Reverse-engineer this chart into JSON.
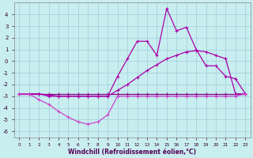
{
  "background_color": "#c8eef0",
  "grid_color": "#a0cdd8",
  "line_color_dark": "#880088",
  "line_color_mid": "#aa00aa",
  "line_color_bright": "#cc44cc",
  "xlabel": "Windchill (Refroidissement éolien,°C)",
  "x_hours": [
    0,
    1,
    2,
    3,
    4,
    5,
    6,
    7,
    8,
    9,
    10,
    11,
    12,
    13,
    14,
    15,
    16,
    17,
    18,
    19,
    20,
    21,
    22,
    23
  ],
  "series_flat": [
    -2.8,
    -2.8,
    -2.8,
    -2.8,
    -2.8,
    -2.8,
    -2.8,
    -2.8,
    -2.8,
    -2.8,
    -2.8,
    -2.8,
    -2.8,
    -2.8,
    -2.8,
    -2.8,
    -2.8,
    -2.8,
    -2.8,
    -2.8,
    -2.8,
    -2.8,
    -2.8,
    -2.8
  ],
  "series_diag": [
    -2.8,
    -2.8,
    -2.8,
    -2.9,
    -3.0,
    -3.0,
    -3.0,
    -3.0,
    -3.0,
    -3.0,
    -2.5,
    -2.0,
    -1.4,
    -0.8,
    -0.3,
    0.2,
    0.5,
    0.8,
    0.9,
    0.8,
    0.5,
    0.2,
    -2.8,
    -2.8
  ],
  "series_upper": [
    -2.8,
    -2.8,
    -2.8,
    -3.0,
    -3.0,
    -3.0,
    -3.0,
    -3.0,
    -3.0,
    -3.0,
    -1.3,
    0.2,
    1.7,
    1.7,
    0.5,
    4.5,
    2.6,
    2.9,
    1.0,
    -0.4,
    -0.4,
    -1.3,
    -1.5,
    -2.8
  ],
  "series_lower": [
    -2.8,
    -2.8,
    -3.3,
    -3.7,
    -4.3,
    -4.8,
    -5.2,
    -5.4,
    -5.2,
    -4.6,
    -3.0,
    -3.0,
    -3.0,
    -3.0,
    -3.0,
    -3.0,
    -3.0,
    -3.0,
    -3.0,
    -3.0,
    -3.0,
    -3.0,
    -3.0,
    -2.8
  ],
  "ylim": [
    -6.5,
    5.0
  ],
  "xlim": [
    -0.5,
    23.5
  ],
  "yticks": [
    -6,
    -5,
    -4,
    -3,
    -2,
    -1,
    0,
    1,
    2,
    3,
    4
  ],
  "xticks": [
    0,
    1,
    2,
    3,
    4,
    5,
    6,
    7,
    8,
    9,
    10,
    11,
    12,
    13,
    14,
    15,
    16,
    17,
    18,
    19,
    20,
    21,
    22,
    23
  ]
}
